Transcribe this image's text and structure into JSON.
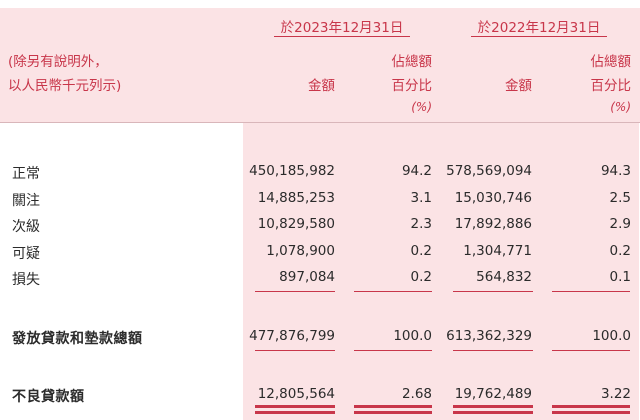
{
  "header": {
    "period_2023": "於2023年12月31日",
    "period_2022": "於2022年12月31日",
    "note_line1": "(除另有說明外，",
    "note_line2": "以人民幣千元列示)",
    "amount_label": "金額",
    "pct_label_line1": "佔總額",
    "pct_label_line2": "百分比",
    "pct_unit": "(%)"
  },
  "rows": [
    {
      "label": "正常",
      "amount_2023": "450,185,982",
      "pct_2023": "94.2",
      "amount_2022": "578,569,094",
      "pct_2022": "94.3"
    },
    {
      "label": "關注",
      "amount_2023": "14,885,253",
      "pct_2023": "3.1",
      "amount_2022": "15,030,746",
      "pct_2022": "2.5"
    },
    {
      "label": "次級",
      "amount_2023": "10,829,580",
      "pct_2023": "2.3",
      "amount_2022": "17,892,886",
      "pct_2022": "2.9"
    },
    {
      "label": "可疑",
      "amount_2023": "1,078,900",
      "pct_2023": "0.2",
      "amount_2022": "1,304,771",
      "pct_2022": "0.2"
    },
    {
      "label": "損失",
      "amount_2023": "897,084",
      "pct_2023": "0.2",
      "amount_2022": "564,832",
      "pct_2022": "0.1"
    }
  ],
  "total": {
    "label": "發放貸款和墊款總額",
    "amount_2023": "477,876,799",
    "pct_2023": "100.0",
    "amount_2022": "613,362,329",
    "pct_2022": "100.0"
  },
  "npl": {
    "label": "不良貸款額",
    "amount_2023": "12,805,564",
    "pct_2023": "2.68",
    "amount_2022": "19,762,489",
    "pct_2022": "3.22"
  },
  "colors": {
    "accent": "#c8364a",
    "panel": "#fbe3e5"
  }
}
